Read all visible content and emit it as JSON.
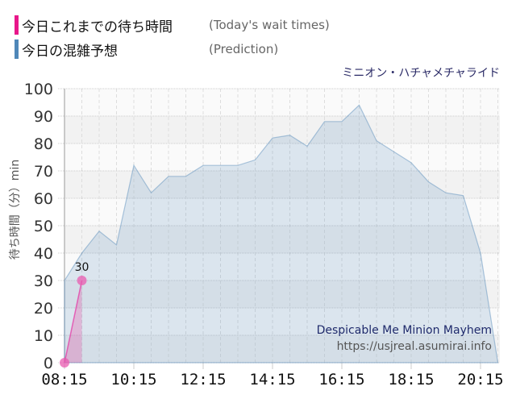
{
  "legend": {
    "actual": {
      "jp": "今日これまでの待ち時間",
      "en": "(Today's wait times)",
      "color": "#e8178a"
    },
    "prediction": {
      "jp": "今日の混雑予想",
      "en": "(Prediction)",
      "color": "#4f87b8"
    }
  },
  "ride_name_jp": "ミニオン・ハチャメチャライド",
  "ride_name_en": "Despicable Me Minion Mayhem",
  "source_url": "https://usjreal.asumirai.info",
  "y_axis_label": "待ち時間（分）min",
  "chart_data": {
    "type": "area",
    "title": "ミニオン・ハチャメチャライド",
    "xlabel": "",
    "ylabel": "待ち時間（分）min",
    "ylim": [
      0,
      100
    ],
    "yticks": [
      0,
      10,
      20,
      30,
      40,
      50,
      60,
      70,
      80,
      90,
      100
    ],
    "xticks": [
      "08:15",
      "10:15",
      "12:15",
      "14:15",
      "16:15",
      "18:15",
      "20:15"
    ],
    "grid": true,
    "legend_position": "top-left",
    "x": [
      "08:15",
      "08:45",
      "09:15",
      "09:45",
      "10:15",
      "10:45",
      "11:15",
      "11:45",
      "12:15",
      "12:45",
      "13:15",
      "13:45",
      "14:15",
      "14:45",
      "15:15",
      "15:45",
      "16:15",
      "16:45",
      "17:15",
      "17:45",
      "18:15",
      "18:45",
      "19:15",
      "19:45",
      "20:15",
      "20:45"
    ],
    "series": [
      {
        "name": "今日の混雑予想 (Prediction)",
        "values": [
          30,
          40,
          48,
          43,
          72,
          62,
          68,
          68,
          72,
          72,
          72,
          74,
          82,
          83,
          79,
          88,
          88,
          94,
          81,
          77,
          73,
          66,
          62,
          61,
          40,
          0
        ]
      },
      {
        "name": "今日これまでの待ち時間 (Today's wait times)",
        "values": [
          0,
          30
        ],
        "labels": [
          "",
          "30"
        ]
      }
    ]
  }
}
